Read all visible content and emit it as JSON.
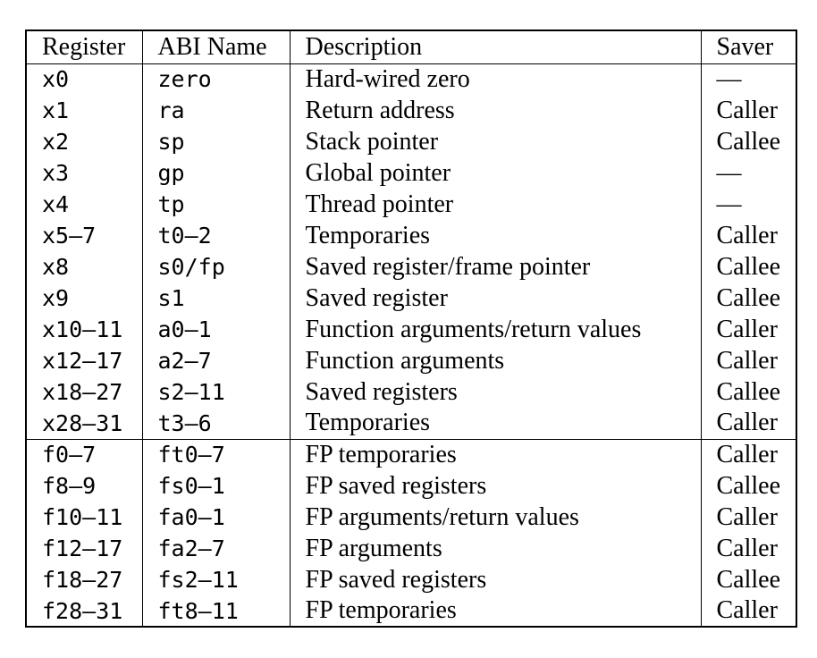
{
  "page": {
    "background": "#ffffff",
    "text_color": "#000000",
    "rule_color": "#000000"
  },
  "table": {
    "columns": [
      {
        "key": "reg",
        "label": "Register"
      },
      {
        "key": "abi",
        "label": "ABI Name"
      },
      {
        "key": "desc",
        "label": "Description"
      },
      {
        "key": "saver",
        "label": "Saver"
      }
    ],
    "sections": [
      {
        "name": "integer-registers",
        "rows": [
          {
            "reg": "x0",
            "abi": "zero",
            "desc": "Hard-wired zero",
            "saver": "—"
          },
          {
            "reg": "x1",
            "abi": "ra",
            "desc": "Return address",
            "saver": "Caller"
          },
          {
            "reg": "x2",
            "abi": "sp",
            "desc": "Stack pointer",
            "saver": "Callee"
          },
          {
            "reg": "x3",
            "abi": "gp",
            "desc": "Global pointer",
            "saver": "—"
          },
          {
            "reg": "x4",
            "abi": "tp",
            "desc": "Thread pointer",
            "saver": "—"
          },
          {
            "reg": "x5–7",
            "abi": "t0–2",
            "desc": "Temporaries",
            "saver": "Caller"
          },
          {
            "reg": "x8",
            "abi": "s0/fp",
            "desc": "Saved register/frame pointer",
            "saver": "Callee"
          },
          {
            "reg": "x9",
            "abi": "s1",
            "desc": "Saved register",
            "saver": "Callee"
          },
          {
            "reg": "x10–11",
            "abi": "a0–1",
            "desc": "Function arguments/return values",
            "saver": "Caller"
          },
          {
            "reg": "x12–17",
            "abi": "a2–7",
            "desc": "Function arguments",
            "saver": "Caller"
          },
          {
            "reg": "x18–27",
            "abi": "s2–11",
            "desc": "Saved registers",
            "saver": "Callee"
          },
          {
            "reg": "x28–31",
            "abi": "t3–6",
            "desc": "Temporaries",
            "saver": "Caller"
          }
        ]
      },
      {
        "name": "floating-point-registers",
        "rows": [
          {
            "reg": "f0–7",
            "abi": "ft0–7",
            "desc": "FP temporaries",
            "saver": "Caller"
          },
          {
            "reg": "f8–9",
            "abi": "fs0–1",
            "desc": "FP saved registers",
            "saver": "Callee"
          },
          {
            "reg": "f10–11",
            "abi": "fa0–1",
            "desc": "FP arguments/return values",
            "saver": "Caller"
          },
          {
            "reg": "f12–17",
            "abi": "fa2–7",
            "desc": "FP arguments",
            "saver": "Caller"
          },
          {
            "reg": "f18–27",
            "abi": "fs2–11",
            "desc": "FP saved registers",
            "saver": "Callee"
          },
          {
            "reg": "f28–31",
            "abi": "ft8–11",
            "desc": "FP temporaries",
            "saver": "Caller"
          }
        ]
      }
    ]
  }
}
